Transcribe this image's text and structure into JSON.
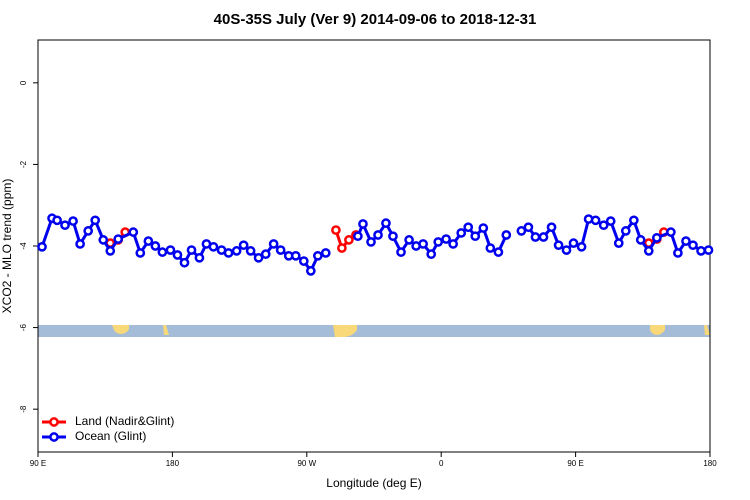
{
  "chart_data": {
    "type": "line",
    "title": "40S-35S July (Ver 9)   2014-09-06 to 2018-12-31",
    "x_label": "Longitude (deg E)",
    "y_label": "XCO2 - MLO trend (ppm)",
    "xlim": [
      90,
      540
    ],
    "xticks": [
      {
        "value": 90,
        "label": "90 E"
      },
      180,
      {
        "value": 270,
        "label": "90 W"
      },
      {
        "value": 360,
        "label": "0"
      },
      {
        "value": 450,
        "label": "90 E"
      },
      180
    ],
    "ylim": [
      -9.05,
      1.05
    ],
    "yticks": [
      0,
      -2,
      -4,
      -6,
      -8
    ],
    "legend": "bottom-left",
    "series": [
      {
        "name": "Land (Nadir&Glint)",
        "color": "#ff0000",
        "x": [
          138.4,
          143.7,
          148.4,
          null,
          289.5,
          293.5,
          298.2,
          302.9,
          null,
          499.0,
          504.4,
          509.1
        ],
        "values": [
          -3.93,
          -3.85,
          -3.66,
          null,
          -3.61,
          -4.05,
          -3.85,
          -3.73,
          null,
          -3.93,
          -3.83,
          -3.66
        ]
      },
      {
        "name": "Ocean (Glint)",
        "color": "#0000ee",
        "x": [
          92.7,
          99.4,
          102.8,
          108.1,
          113.5,
          118.2,
          123.6,
          128.3,
          133.7,
          138.4,
          143.7,
          153.8,
          158.5,
          163.9,
          168.6,
          173.3,
          178.7,
          183.4,
          188.1,
          192.8,
          198.1,
          202.8,
          207.5,
          212.9,
          217.6,
          223.0,
          227.7,
          232.4,
          237.7,
          242.5,
          247.8,
          252.5,
          257.9,
          262.6,
          268.0,
          272.7,
          277.4,
          282.7,
          null,
          304.2,
          307.6,
          313.0,
          317.7,
          323.0,
          327.7,
          333.1,
          338.5,
          343.2,
          347.9,
          353.3,
          358.0,
          363.3,
          368.0,
          373.4,
          378.1,
          382.8,
          388.2,
          392.9,
          398.3,
          403.6,
          null,
          413.7,
          418.4,
          423.1,
          428.5,
          433.9,
          438.6,
          443.9,
          448.6,
          454.0,
          458.7,
          463.4,
          468.8,
          473.5,
          478.9,
          483.6,
          489.0,
          493.6,
          499.0,
          504.4,
          513.8,
          518.5,
          523.9,
          528.6,
          534.0,
          539.0
        ],
        "values": [
          -4.02,
          -3.32,
          -3.37,
          -3.49,
          -3.39,
          -3.95,
          -3.63,
          -3.37,
          -3.85,
          -4.12,
          -3.83,
          -3.66,
          -4.17,
          -3.88,
          -4.0,
          -4.15,
          -4.1,
          -4.22,
          -4.41,
          -4.1,
          -4.29,
          -3.95,
          -4.02,
          -4.1,
          -4.17,
          -4.12,
          -3.98,
          -4.12,
          -4.29,
          -4.2,
          -3.95,
          -4.1,
          -4.24,
          -4.24,
          -4.37,
          -4.61,
          -4.24,
          -4.17,
          null,
          -3.76,
          -3.46,
          -3.9,
          -3.73,
          -3.44,
          -3.76,
          -4.15,
          -3.85,
          -4.0,
          -3.95,
          -4.2,
          -3.9,
          -3.83,
          -3.95,
          -3.68,
          -3.54,
          -3.76,
          -3.56,
          -4.05,
          -4.15,
          -3.73,
          null,
          -3.63,
          -3.54,
          -3.78,
          -3.78,
          -3.54,
          -3.98,
          -4.1,
          -3.93,
          -4.02,
          -3.34,
          -3.37,
          -3.49,
          -3.39,
          -3.93,
          -3.63,
          -3.37,
          -3.85,
          -4.12,
          -3.8,
          -3.66,
          -4.17,
          -3.88,
          -3.98,
          -4.12,
          -4.1
        ]
      }
    ]
  }
}
